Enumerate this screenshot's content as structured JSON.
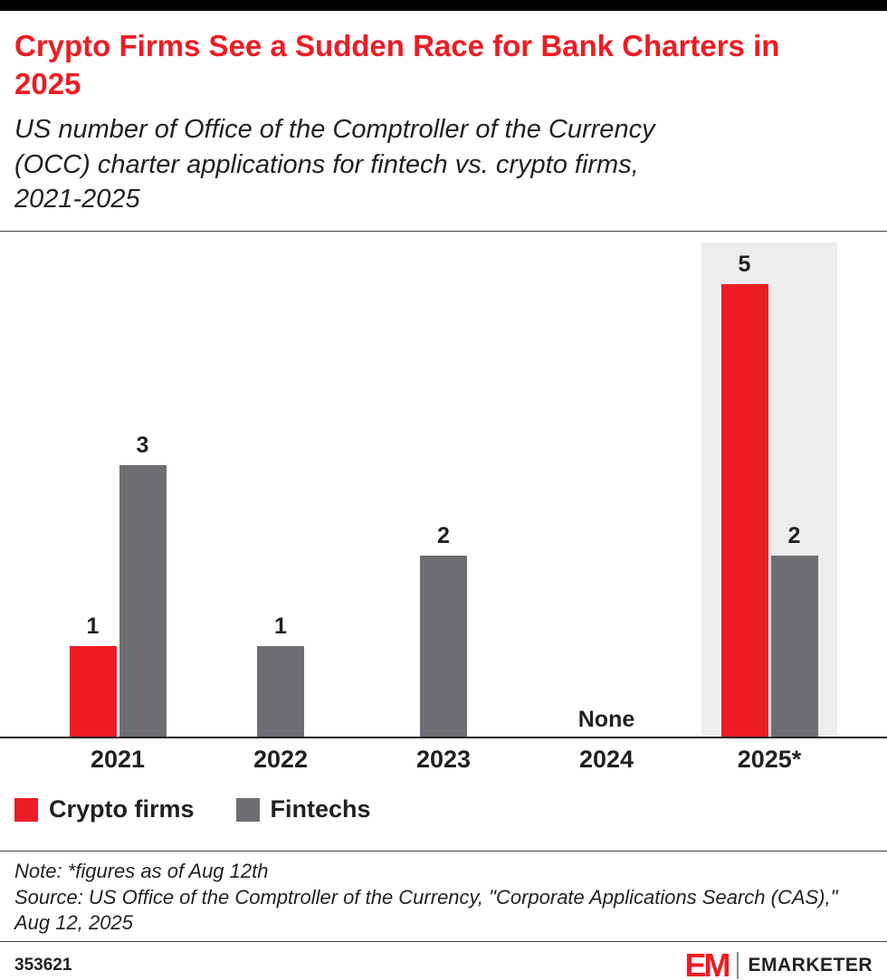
{
  "header": {
    "title": "Crypto Firms See a Sudden Race for Bank Charters in 2025",
    "subtitle": "US number of Office of the Comptroller of the Currency (OCC) charter applications for fintech vs. crypto firms, 2021-2025"
  },
  "chart_data": {
    "type": "bar",
    "title": "Crypto Firms See a Sudden Race for Bank Charters in 2025",
    "subtitle": "US number of Office of the Comptroller of the Currency (OCC) charter applications for fintech vs. crypto firms, 2021-2025",
    "categories": [
      "2021",
      "2022",
      "2023",
      "2024",
      "2025*"
    ],
    "series": [
      {
        "name": "Crypto firms",
        "color": "#ed1c24",
        "values": [
          1,
          null,
          null,
          null,
          5
        ]
      },
      {
        "name": "Fintechs",
        "color": "#6d6e71",
        "values": [
          3,
          1,
          2,
          null,
          2
        ]
      }
    ],
    "none_label": "None",
    "none_category_index": 3,
    "highlight_category_index": 4,
    "highlight_color": "#ededed",
    "ylim": [
      0,
      5
    ],
    "grid": false,
    "legend_position": "bottom-left",
    "xlabel": "",
    "ylabel": ""
  },
  "legend": {
    "items": [
      {
        "label": "Crypto firms",
        "color": "#ed1c24"
      },
      {
        "label": "Fintechs",
        "color": "#6d6e71"
      }
    ]
  },
  "notes": {
    "note": "Note: *figures as of Aug 12th",
    "source": "Source: US Office of the Comptroller of the Currency, \"Corporate Applications Search (CAS),\" Aug 12, 2025"
  },
  "footer": {
    "chart_id": "353621",
    "brand_mark": "EM",
    "brand": "EMARKETER"
  },
  "colors": {
    "accent_red": "#ed1c24",
    "bar_gray": "#6d6e71",
    "highlight_bg": "#ededed",
    "text": "#231f20",
    "top_bar": "#000000"
  }
}
